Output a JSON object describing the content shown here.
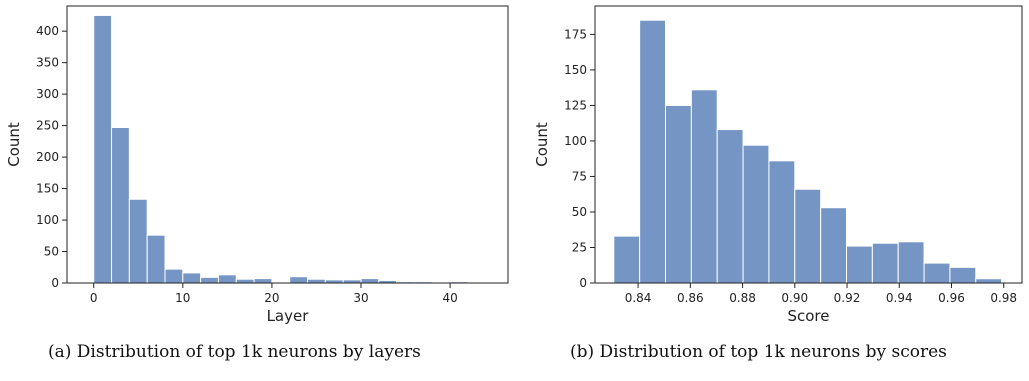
{
  "captions": {
    "a": "(a) Distribution of top 1k neurons by layers",
    "b": "(b) Distribution of top 1k neurons by scores"
  },
  "colors": {
    "bar": "#7596c5",
    "axis": "#222222"
  },
  "chart_data": [
    {
      "type": "bar",
      "xlabel": "Layer",
      "ylabel": "Count",
      "xlim": [
        -3,
        46.5
      ],
      "ylim": [
        0,
        440
      ],
      "xticks": [
        0,
        10,
        20,
        30,
        40
      ],
      "yticks": [
        0,
        50,
        100,
        150,
        200,
        250,
        300,
        350,
        400
      ],
      "bin_width": 2,
      "bin_starts": [
        0,
        2,
        4,
        6,
        8,
        10,
        12,
        14,
        16,
        18,
        20,
        22,
        24,
        26,
        28,
        30,
        32,
        34,
        36,
        38,
        40,
        42,
        44
      ],
      "values": [
        425,
        247,
        133,
        76,
        22,
        16,
        9,
        13,
        6,
        7,
        1,
        10,
        6,
        5,
        5,
        7,
        4,
        2,
        2,
        1,
        2,
        1,
        1
      ]
    },
    {
      "type": "bar",
      "xlabel": "Score",
      "ylabel": "Count",
      "xlim": [
        0.8235,
        0.987
      ],
      "ylim": [
        0,
        195
      ],
      "xticks": [
        "0.84",
        "0.86",
        "0.88",
        "0.90",
        "0.92",
        "0.94",
        "0.96",
        "0.98"
      ],
      "yticks": [
        0,
        25,
        50,
        75,
        100,
        125,
        150,
        175
      ],
      "bin_width": 0.0099,
      "bin_starts": [
        0.8307,
        0.8406,
        0.8505,
        0.8604,
        0.8703,
        0.8802,
        0.8901,
        0.9,
        0.9099,
        0.9198,
        0.9297,
        0.9396,
        0.9495,
        0.9594,
        0.9693
      ],
      "values": [
        33,
        185,
        125,
        136,
        108,
        97,
        86,
        66,
        53,
        26,
        28,
        29,
        14,
        11,
        3
      ]
    }
  ]
}
